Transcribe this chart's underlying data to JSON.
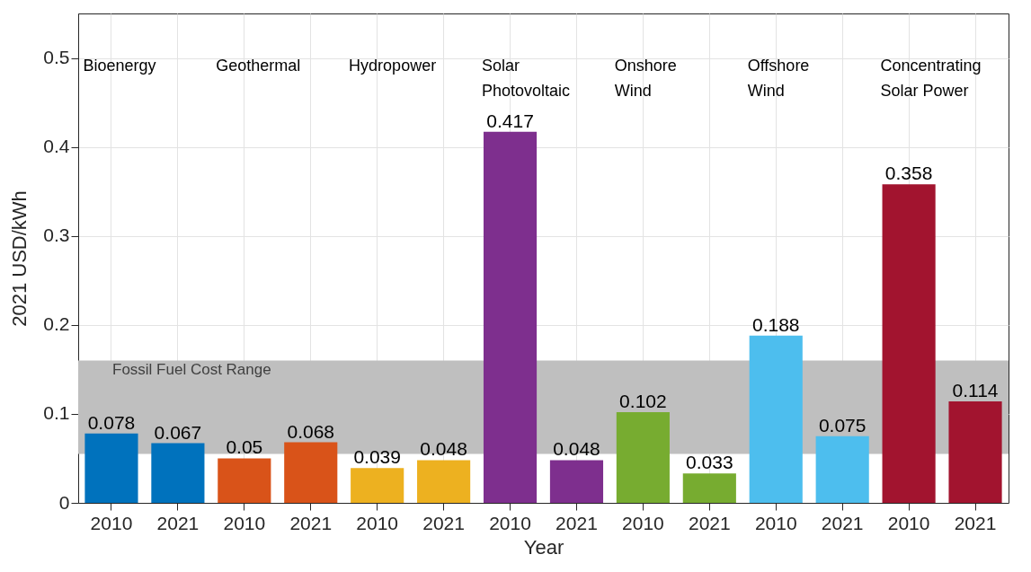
{
  "chart_data": {
    "type": "bar",
    "xlabel": "Year",
    "ylabel": "2021 USD/kWh",
    "categories": [
      "2010",
      "2021",
      "2010",
      "2021",
      "2010",
      "2021",
      "2010",
      "2021",
      "2010",
      "2021",
      "2010",
      "2021",
      "2010",
      "2021"
    ],
    "values": [
      0.078,
      0.067,
      0.05,
      0.068,
      0.039,
      0.048,
      0.417,
      0.048,
      0.102,
      0.033,
      0.188,
      0.075,
      0.358,
      0.114
    ],
    "colors": [
      "#0072bd",
      "#0072bd",
      "#d95319",
      "#d95319",
      "#edb120",
      "#edb120",
      "#7e2f8e",
      "#7e2f8e",
      "#77ac30",
      "#77ac30",
      "#4dbeee",
      "#4dbeee",
      "#a2142f",
      "#a2142f"
    ],
    "annotations": [
      "Bioenergy",
      "Geothermal",
      "Hydropower",
      "Solar\nPhotovoltaic",
      "Onshore\nWind",
      "Offshore\nWind",
      "Concentrating\nSolar Power"
    ],
    "bands": [
      {
        "axis": "y",
        "from": 0.055,
        "to": 0.16,
        "label": "Fossil Fuel Cost Range",
        "color": "#bfbfbf"
      }
    ],
    "ylim": [
      0,
      0.55
    ],
    "yticks": [
      0,
      0.1,
      0.2,
      0.3,
      0.4,
      0.5
    ],
    "grid": true,
    "data_labels": true
  }
}
